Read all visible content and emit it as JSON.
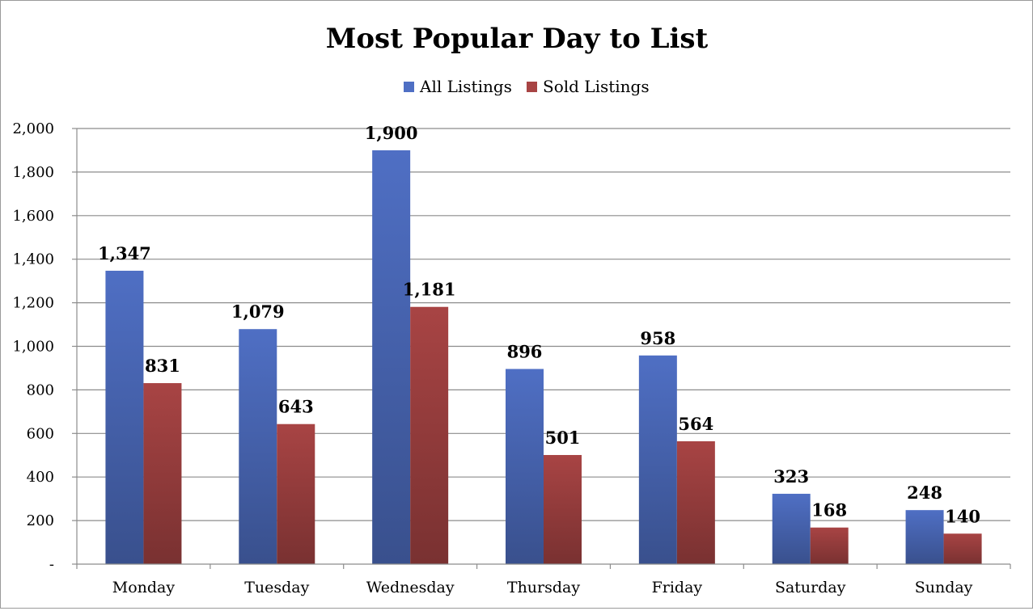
{
  "chart_data": {
    "type": "bar",
    "title": "Most Popular Day to List",
    "xlabel": "",
    "ylabel": "",
    "categories": [
      "Monday",
      "Tuesday",
      "Wednesday",
      "Thursday",
      "Friday",
      "Saturday",
      "Sunday"
    ],
    "series": [
      {
        "name": "All Listings",
        "color": "#4f6fc4",
        "values": [
          1347,
          1079,
          1900,
          896,
          958,
          323,
          248
        ],
        "labels": [
          "1,347",
          "1,079",
          "1,900",
          "896",
          "958",
          "323",
          "248"
        ]
      },
      {
        "name": "Sold Listings",
        "color": "#a84444",
        "values": [
          831,
          643,
          1181,
          501,
          564,
          168,
          140
        ],
        "labels": [
          "831",
          "643",
          "1,181",
          "501",
          "564",
          "168",
          "140"
        ]
      }
    ],
    "ylim": [
      0,
      2000
    ],
    "yticks": [
      0,
      200,
      400,
      600,
      800,
      1000,
      1200,
      1400,
      1600,
      1800,
      2000
    ],
    "ytick_labels": [
      "-",
      "200",
      "400",
      "600",
      "800",
      "1,000",
      "1,200",
      "1,400",
      "1,600",
      "1,800",
      "2,000"
    ],
    "grid": true,
    "legend_position": "top-center"
  }
}
